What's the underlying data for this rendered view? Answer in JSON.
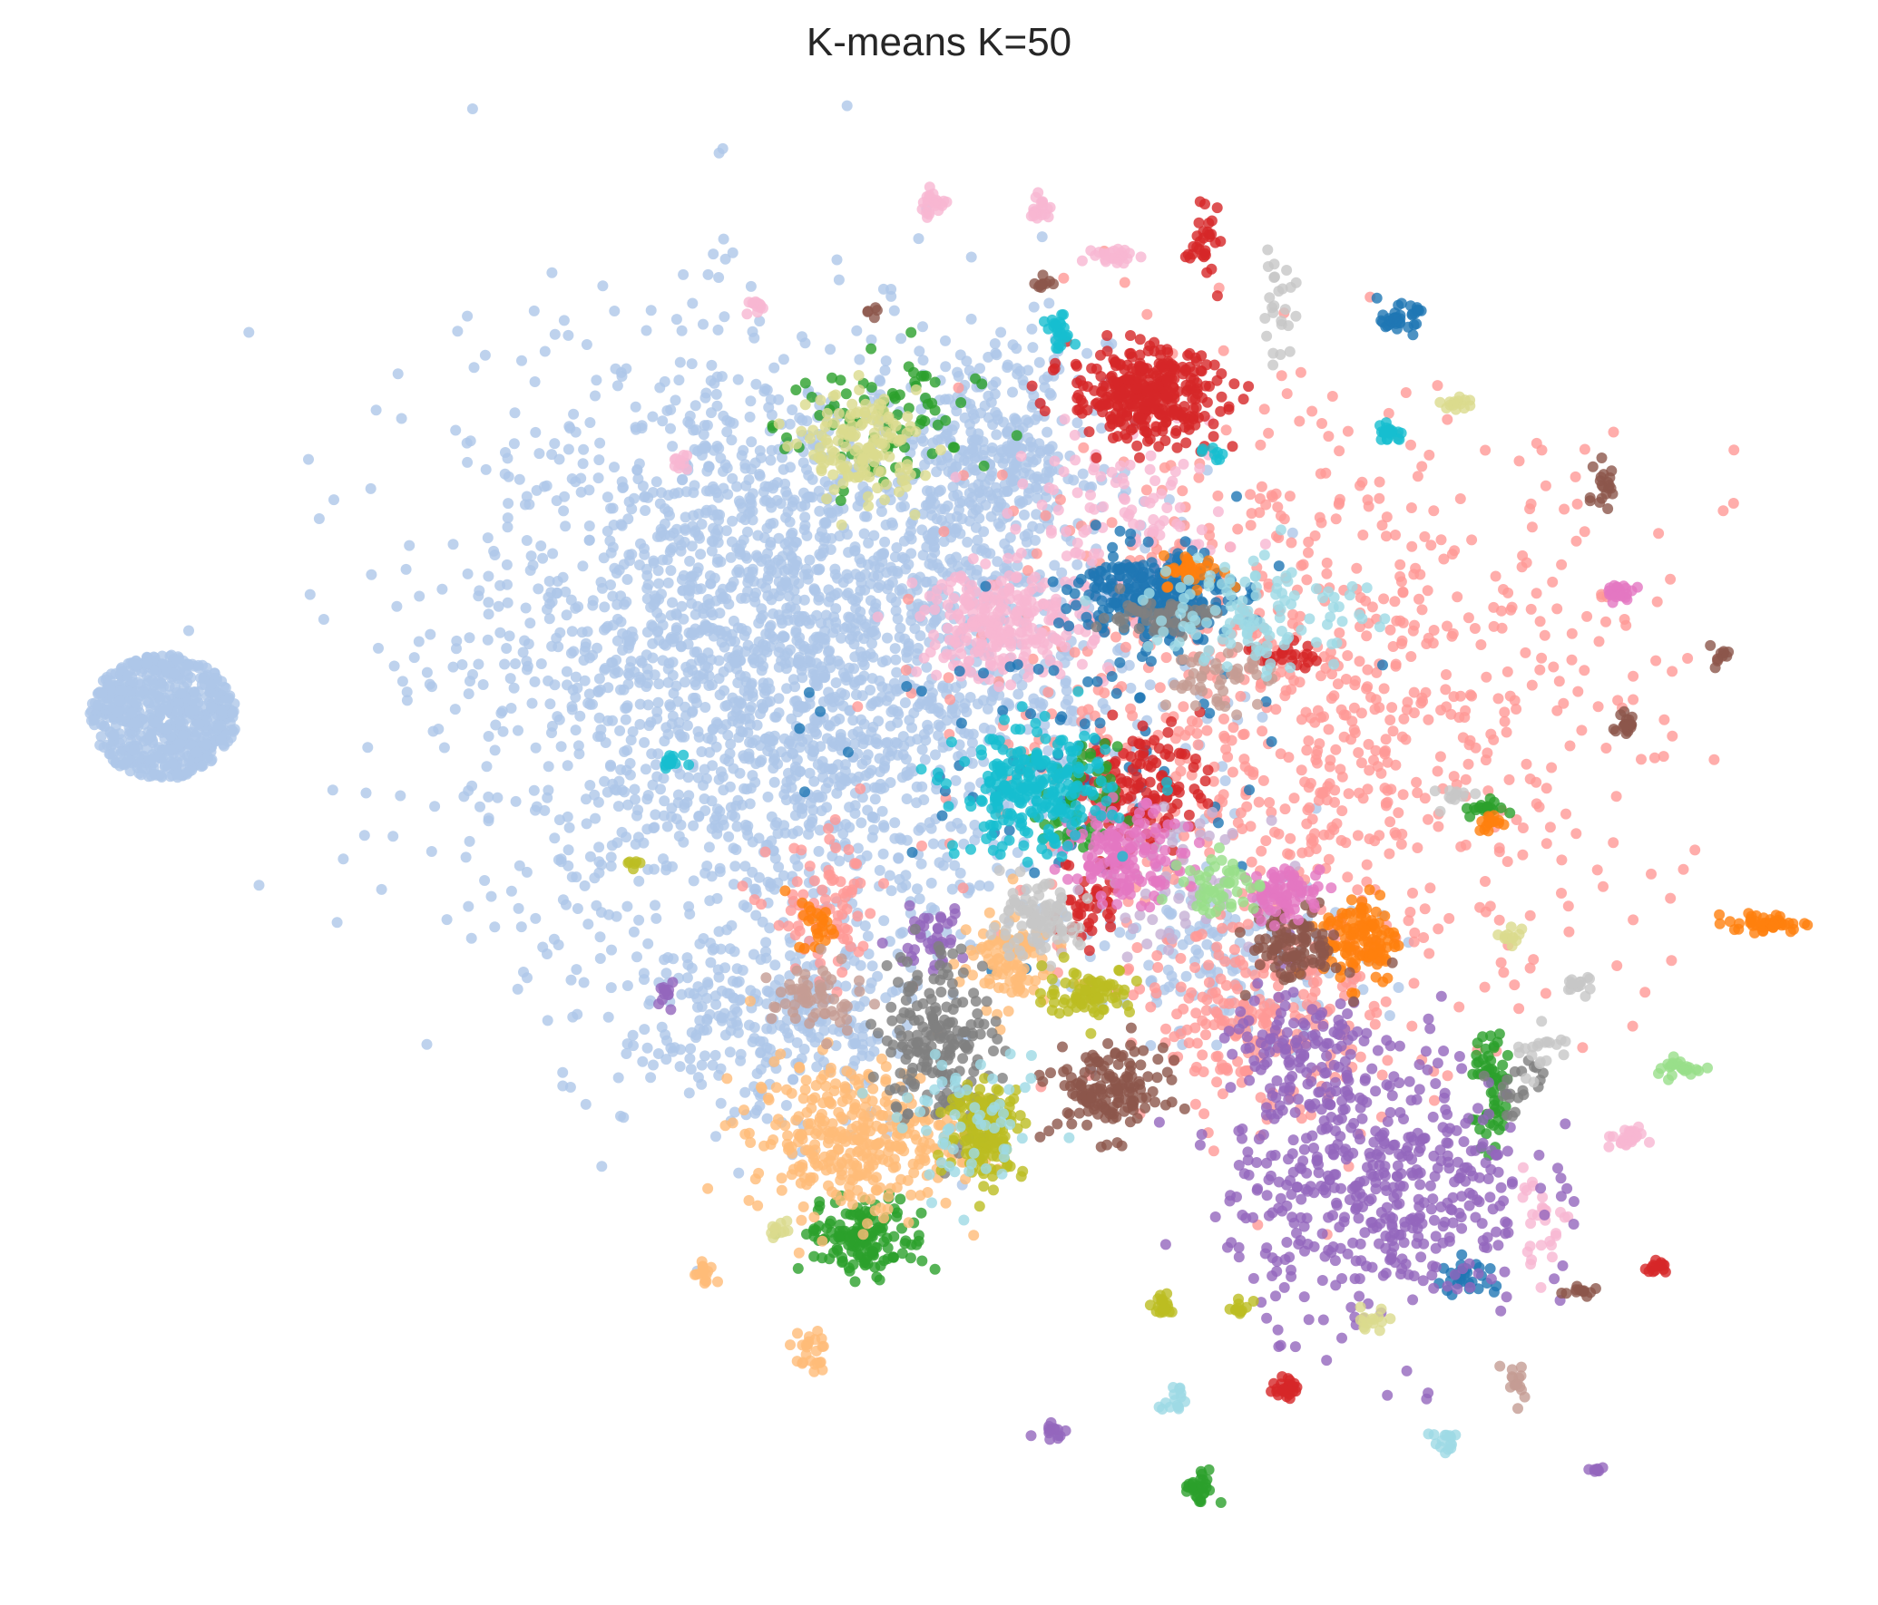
{
  "chart_data": {
    "type": "scatter",
    "title": "K-means K=50",
    "xlabel": "",
    "ylabel": "",
    "axes_visible": false,
    "grid": false,
    "legend": "none",
    "xlim": [
      0,
      100
    ],
    "ylim": [
      0,
      100
    ],
    "colors": {
      "light-blue": "#aec7e8",
      "salmon": "#ff9896",
      "pink": "#f7b6d2",
      "blue": "#1f77b4",
      "red": "#d62728",
      "green": "#2ca02c",
      "orange": "#ff7f0e",
      "light-orange": "#ffbb78",
      "purple": "#9467bd",
      "light-purple": "#c5b0d5",
      "brown": "#8c564b",
      "rosy": "#c49c94",
      "magenta": "#e377c2",
      "gray": "#7f7f7f",
      "light-gray": "#c7c7c7",
      "olive": "#bcbd22",
      "khaki": "#dbdb8d",
      "cyan": "#17becf",
      "light-cyan": "#9edae5",
      "light-green": "#98df8a"
    },
    "clusters": [
      {
        "color": "light-blue",
        "cx": 8.7,
        "cy": 58.0,
        "sx": 2.3,
        "sy": 2.4,
        "n": 650,
        "shape": "disk"
      },
      {
        "color": "light-blue",
        "cx": 42.0,
        "cy": 62.0,
        "sx": 8.5,
        "sy": 10.0,
        "n": 2600
      },
      {
        "color": "light-blue",
        "cx": 53.0,
        "cy": 75.0,
        "sx": 2.5,
        "sy": 3.5,
        "n": 300
      },
      {
        "color": "light-blue",
        "cx": 41.0,
        "cy": 38.0,
        "sx": 4.0,
        "sy": 3.5,
        "n": 300
      },
      {
        "color": "light-blue",
        "cx": 66.0,
        "cy": 42.0,
        "sx": 3.5,
        "sy": 2.5,
        "n": 150
      },
      {
        "color": "salmon",
        "cx": 70.0,
        "cy": 58.0,
        "sx": 9.0,
        "sy": 10.0,
        "n": 900
      },
      {
        "color": "salmon",
        "cx": 67.0,
        "cy": 38.0,
        "sx": 3.0,
        "sy": 3.0,
        "n": 200
      },
      {
        "color": "salmon",
        "cx": 44.0,
        "cy": 45.0,
        "sx": 1.5,
        "sy": 2.5,
        "n": 80
      },
      {
        "color": "pink",
        "cx": 53.5,
        "cy": 64.0,
        "sx": 2.2,
        "sy": 1.8,
        "n": 260
      },
      {
        "color": "pink",
        "cx": 60.0,
        "cy": 70.0,
        "sx": 3.0,
        "sy": 3.0,
        "n": 120
      },
      {
        "color": "pink",
        "cx": 49.7,
        "cy": 91.5,
        "sx": 0.4,
        "sy": 0.4,
        "n": 25
      },
      {
        "color": "pink",
        "cx": 55.3,
        "cy": 91.2,
        "sx": 0.3,
        "sy": 0.4,
        "n": 20
      },
      {
        "color": "pink",
        "cx": 59.5,
        "cy": 88.0,
        "sx": 0.6,
        "sy": 0.3,
        "n": 25
      },
      {
        "color": "pink",
        "cx": 40.3,
        "cy": 84.8,
        "sx": 0.3,
        "sy": 0.3,
        "n": 12
      },
      {
        "color": "pink",
        "cx": 36.0,
        "cy": 74.5,
        "sx": 0.3,
        "sy": 0.3,
        "n": 10
      },
      {
        "color": "pink",
        "cx": 86.5,
        "cy": 30.5,
        "sx": 0.6,
        "sy": 0.3,
        "n": 25
      },
      {
        "color": "pink",
        "cx": 82.0,
        "cy": 25.0,
        "sx": 0.8,
        "sy": 1.5,
        "n": 30
      },
      {
        "color": "blue",
        "cx": 61.5,
        "cy": 66.0,
        "sx": 2.0,
        "sy": 1.5,
        "n": 280
      },
      {
        "color": "blue",
        "cx": 74.5,
        "cy": 84.0,
        "sx": 0.5,
        "sy": 0.4,
        "n": 40
      },
      {
        "color": "blue",
        "cx": 78.0,
        "cy": 21.5,
        "sx": 0.8,
        "sy": 0.6,
        "n": 30
      },
      {
        "color": "blue",
        "cx": 57.0,
        "cy": 56.0,
        "sx": 6.0,
        "sy": 6.0,
        "n": 80
      },
      {
        "color": "red",
        "cx": 61.0,
        "cy": 79.0,
        "sx": 2.0,
        "sy": 1.5,
        "n": 350
      },
      {
        "color": "red",
        "cx": 64.0,
        "cy": 89.0,
        "sx": 0.4,
        "sy": 1.0,
        "n": 30
      },
      {
        "color": "red",
        "cx": 61.0,
        "cy": 53.5,
        "sx": 1.5,
        "sy": 2.0,
        "n": 120
      },
      {
        "color": "red",
        "cx": 58.0,
        "cy": 46.0,
        "sx": 0.8,
        "sy": 1.5,
        "n": 40
      },
      {
        "color": "red",
        "cx": 68.5,
        "cy": 14.2,
        "sx": 0.3,
        "sy": 0.4,
        "n": 25
      },
      {
        "color": "red",
        "cx": 88.2,
        "cy": 22.0,
        "sx": 0.3,
        "sy": 0.2,
        "n": 15
      },
      {
        "color": "red",
        "cx": 68.5,
        "cy": 62.0,
        "sx": 0.8,
        "sy": 0.5,
        "n": 25
      },
      {
        "color": "green",
        "cx": 46.0,
        "cy": 24.0,
        "sx": 1.6,
        "sy": 1.2,
        "n": 150
      },
      {
        "color": "green",
        "cx": 79.5,
        "cy": 33.5,
        "sx": 0.5,
        "sy": 2.0,
        "n": 60
      },
      {
        "color": "green",
        "cx": 63.8,
        "cy": 7.5,
        "sx": 0.4,
        "sy": 0.6,
        "n": 30
      },
      {
        "color": "green",
        "cx": 47.0,
        "cy": 77.0,
        "sx": 2.5,
        "sy": 2.5,
        "n": 80
      },
      {
        "color": "green",
        "cx": 79.0,
        "cy": 52.0,
        "sx": 0.5,
        "sy": 0.3,
        "n": 20
      },
      {
        "color": "green",
        "cx": 57.5,
        "cy": 52.0,
        "sx": 1.0,
        "sy": 2.0,
        "n": 60
      },
      {
        "color": "orange",
        "cx": 94.0,
        "cy": 44.5,
        "sx": 1.0,
        "sy": 0.3,
        "n": 50
      },
      {
        "color": "orange",
        "cx": 72.5,
        "cy": 43.5,
        "sx": 1.0,
        "sy": 1.5,
        "n": 120
      },
      {
        "color": "orange",
        "cx": 63.5,
        "cy": 67.5,
        "sx": 0.8,
        "sy": 0.5,
        "n": 40
      },
      {
        "color": "orange",
        "cx": 43.5,
        "cy": 44.5,
        "sx": 0.5,
        "sy": 1.0,
        "n": 25
      },
      {
        "color": "orange",
        "cx": 79.5,
        "cy": 51.0,
        "sx": 0.4,
        "sy": 0.3,
        "n": 15
      },
      {
        "color": "light-orange",
        "cx": 45.5,
        "cy": 30.5,
        "sx": 2.8,
        "sy": 2.5,
        "n": 350
      },
      {
        "color": "light-orange",
        "cx": 53.5,
        "cy": 42.0,
        "sx": 1.2,
        "sy": 1.5,
        "n": 100
      },
      {
        "color": "light-orange",
        "cx": 43.0,
        "cy": 16.5,
        "sx": 0.5,
        "sy": 0.7,
        "n": 25
      },
      {
        "color": "light-orange",
        "cx": 37.5,
        "cy": 21.5,
        "sx": 0.3,
        "sy": 0.5,
        "n": 15
      },
      {
        "color": "purple",
        "cx": 73.5,
        "cy": 27.5,
        "sx": 4.0,
        "sy": 4.5,
        "n": 500
      },
      {
        "color": "purple",
        "cx": 69.5,
        "cy": 35.5,
        "sx": 2.0,
        "sy": 2.5,
        "n": 120
      },
      {
        "color": "purple",
        "cx": 49.5,
        "cy": 43.5,
        "sx": 1.0,
        "sy": 1.0,
        "n": 40
      },
      {
        "color": "purple",
        "cx": 56.0,
        "cy": 11.5,
        "sx": 0.4,
        "sy": 0.4,
        "n": 15
      },
      {
        "color": "purple",
        "cx": 85.0,
        "cy": 9.0,
        "sx": 0.3,
        "sy": 0.2,
        "n": 8
      },
      {
        "color": "purple",
        "cx": 35.5,
        "cy": 40.0,
        "sx": 0.3,
        "sy": 0.5,
        "n": 12
      },
      {
        "color": "light-purple",
        "cx": 63.0,
        "cy": 47.0,
        "sx": 2.0,
        "sy": 2.0,
        "n": 60
      },
      {
        "color": "brown",
        "cx": 59.0,
        "cy": 33.5,
        "sx": 1.5,
        "sy": 1.5,
        "n": 150
      },
      {
        "color": "brown",
        "cx": 69.0,
        "cy": 43.0,
        "sx": 1.2,
        "sy": 1.2,
        "n": 100
      },
      {
        "color": "brown",
        "cx": 85.5,
        "cy": 73.0,
        "sx": 0.3,
        "sy": 0.8,
        "n": 20
      },
      {
        "color": "brown",
        "cx": 86.5,
        "cy": 57.5,
        "sx": 0.3,
        "sy": 0.6,
        "n": 20
      },
      {
        "color": "brown",
        "cx": 91.5,
        "cy": 62.0,
        "sx": 0.4,
        "sy": 0.3,
        "n": 10
      },
      {
        "color": "brown",
        "cx": 55.5,
        "cy": 86.0,
        "sx": 0.3,
        "sy": 0.3,
        "n": 10
      },
      {
        "color": "brown",
        "cx": 46.5,
        "cy": 84.5,
        "sx": 0.2,
        "sy": 0.2,
        "n": 5
      },
      {
        "color": "brown",
        "cx": 84.0,
        "cy": 20.5,
        "sx": 0.5,
        "sy": 0.2,
        "n": 12
      },
      {
        "color": "rosy",
        "cx": 43.5,
        "cy": 39.5,
        "sx": 1.2,
        "sy": 1.2,
        "n": 60
      },
      {
        "color": "rosy",
        "cx": 80.5,
        "cy": 14.5,
        "sx": 0.3,
        "sy": 0.8,
        "n": 15
      },
      {
        "color": "rosy",
        "cx": 65.0,
        "cy": 60.5,
        "sx": 1.5,
        "sy": 1.0,
        "n": 50
      },
      {
        "color": "magenta",
        "cx": 60.0,
        "cy": 49.0,
        "sx": 1.5,
        "sy": 1.5,
        "n": 150
      },
      {
        "color": "magenta",
        "cx": 68.5,
        "cy": 46.5,
        "sx": 1.0,
        "sy": 0.8,
        "n": 80
      },
      {
        "color": "magenta",
        "cx": 86.2,
        "cy": 66.0,
        "sx": 0.4,
        "sy": 0.3,
        "n": 20
      },
      {
        "color": "gray",
        "cx": 50.0,
        "cy": 37.0,
        "sx": 1.5,
        "sy": 3.0,
        "n": 200
      },
      {
        "color": "gray",
        "cx": 61.5,
        "cy": 64.5,
        "sx": 1.5,
        "sy": 0.6,
        "n": 60
      },
      {
        "color": "gray",
        "cx": 81.0,
        "cy": 34.0,
        "sx": 1.0,
        "sy": 1.0,
        "n": 20
      },
      {
        "color": "light-gray",
        "cx": 55.0,
        "cy": 44.5,
        "sx": 1.2,
        "sy": 1.2,
        "n": 100
      },
      {
        "color": "light-gray",
        "cx": 68.0,
        "cy": 84.5,
        "sx": 0.5,
        "sy": 1.5,
        "n": 25
      },
      {
        "color": "light-gray",
        "cx": 84.0,
        "cy": 40.5,
        "sx": 0.4,
        "sy": 0.3,
        "n": 15
      },
      {
        "color": "light-gray",
        "cx": 82.0,
        "cy": 36.0,
        "sx": 0.8,
        "sy": 1.0,
        "n": 20
      },
      {
        "color": "light-gray",
        "cx": 77.5,
        "cy": 53.0,
        "sx": 0.5,
        "sy": 0.5,
        "n": 12
      },
      {
        "color": "olive",
        "cx": 52.5,
        "cy": 31.0,
        "sx": 1.0,
        "sy": 1.5,
        "n": 150
      },
      {
        "color": "olive",
        "cx": 58.0,
        "cy": 40.0,
        "sx": 1.2,
        "sy": 0.8,
        "n": 80
      },
      {
        "color": "olive",
        "cx": 62.0,
        "cy": 19.5,
        "sx": 0.4,
        "sy": 0.3,
        "n": 20
      },
      {
        "color": "olive",
        "cx": 66.0,
        "cy": 19.3,
        "sx": 0.3,
        "sy": 0.3,
        "n": 12
      },
      {
        "color": "olive",
        "cx": 33.8,
        "cy": 48.5,
        "sx": 0.2,
        "sy": 0.2,
        "n": 6
      },
      {
        "color": "khaki",
        "cx": 46.0,
        "cy": 75.5,
        "sx": 1.5,
        "sy": 1.8,
        "n": 150
      },
      {
        "color": "khaki",
        "cx": 77.5,
        "cy": 78.5,
        "sx": 0.5,
        "sy": 0.2,
        "n": 15
      },
      {
        "color": "khaki",
        "cx": 73.0,
        "cy": 18.5,
        "sx": 0.5,
        "sy": 0.5,
        "n": 15
      },
      {
        "color": "khaki",
        "cx": 80.5,
        "cy": 43.5,
        "sx": 0.4,
        "sy": 0.3,
        "n": 12
      },
      {
        "color": "khaki",
        "cx": 41.5,
        "cy": 24.5,
        "sx": 0.3,
        "sy": 0.3,
        "n": 10
      },
      {
        "color": "cyan",
        "cx": 55.0,
        "cy": 53.0,
        "sx": 2.0,
        "sy": 2.0,
        "n": 250
      },
      {
        "color": "cyan",
        "cx": 56.5,
        "cy": 83.0,
        "sx": 0.4,
        "sy": 0.5,
        "n": 25
      },
      {
        "color": "cyan",
        "cx": 74.0,
        "cy": 76.5,
        "sx": 0.4,
        "sy": 0.3,
        "n": 20
      },
      {
        "color": "cyan",
        "cx": 35.8,
        "cy": 55.0,
        "sx": 0.4,
        "sy": 0.3,
        "n": 15
      },
      {
        "color": "cyan",
        "cx": 64.5,
        "cy": 75.0,
        "sx": 0.3,
        "sy": 0.3,
        "n": 8
      },
      {
        "color": "light-cyan",
        "cx": 67.0,
        "cy": 65.0,
        "sx": 3.0,
        "sy": 2.0,
        "n": 120
      },
      {
        "color": "light-cyan",
        "cx": 52.0,
        "cy": 31.0,
        "sx": 2.0,
        "sy": 2.0,
        "n": 60
      },
      {
        "color": "light-cyan",
        "cx": 62.5,
        "cy": 13.5,
        "sx": 0.4,
        "sy": 0.6,
        "n": 15
      },
      {
        "color": "light-cyan",
        "cx": 77.0,
        "cy": 10.5,
        "sx": 0.5,
        "sy": 0.4,
        "n": 15
      },
      {
        "color": "light-green",
        "cx": 89.5,
        "cy": 35.0,
        "sx": 0.8,
        "sy": 0.3,
        "n": 25
      },
      {
        "color": "light-green",
        "cx": 65.0,
        "cy": 47.0,
        "sx": 1.0,
        "sy": 1.0,
        "n": 50
      }
    ]
  }
}
